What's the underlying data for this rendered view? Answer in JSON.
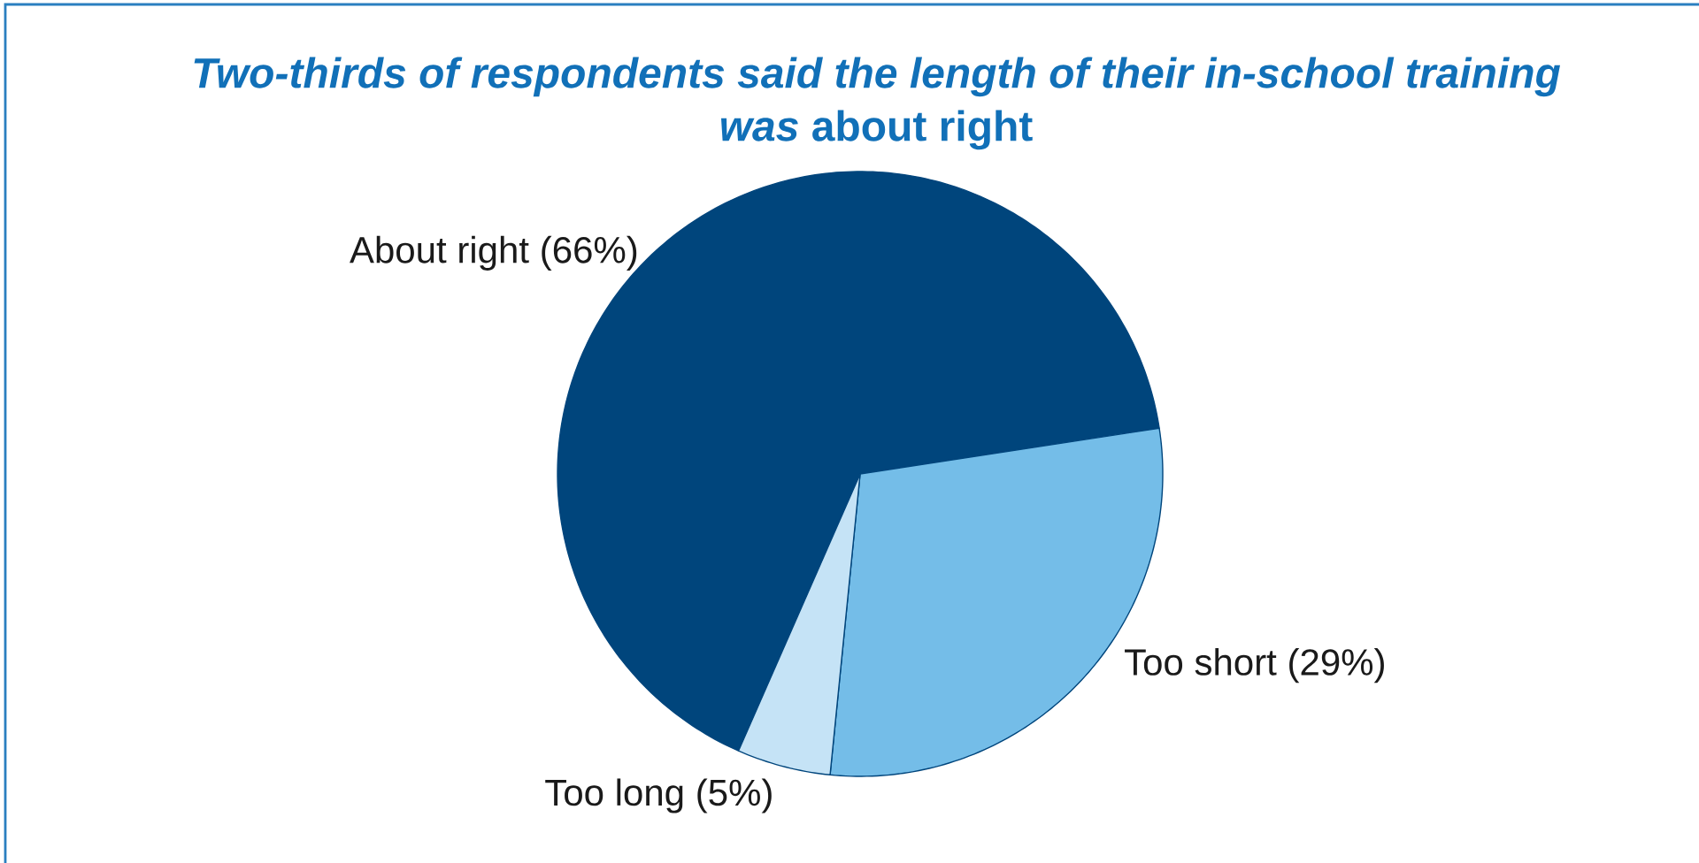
{
  "chart_data": {
    "type": "pie",
    "title": "*Two-thirds of respondents said the length of their in-school training was* about right",
    "categories": [
      "About right",
      "Too short",
      "Too long"
    ],
    "values": [
      66,
      29,
      5
    ],
    "value_labels": [
      "(66%)",
      "(29%)",
      "(5%)"
    ],
    "colors": [
      "#00457c",
      "#74bde8",
      "#c5e3f6"
    ]
  }
}
